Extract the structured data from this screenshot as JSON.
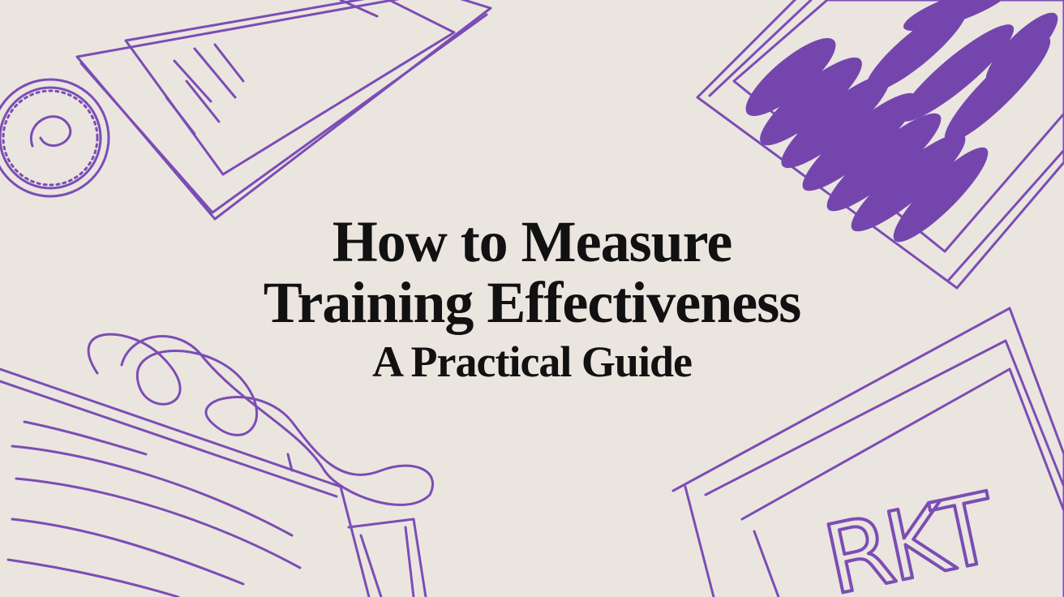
{
  "title": {
    "line1": "How to Measure",
    "line2": "Training Effectiveness",
    "subtitle": "A Practical Guide"
  },
  "illustration": {
    "board_scribble": "RKT",
    "stroke_color": "#7b4db5",
    "fill_color": "#7446ad",
    "background_color": "#ebe5df",
    "text_color": "#111111"
  }
}
